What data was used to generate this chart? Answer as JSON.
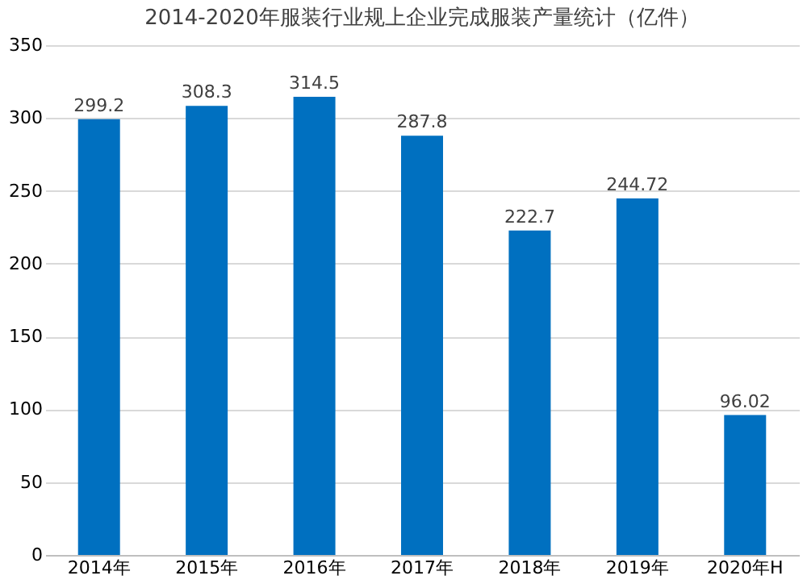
{
  "chart_data": {
    "type": "bar",
    "title": "2014-2020年服装行业规上企业完成服装产量统计（亿件）",
    "categories": [
      "2014年",
      "2015年",
      "2016年",
      "2017年",
      "2018年",
      "2019年",
      "2020年H"
    ],
    "values": [
      299.2,
      308.3,
      314.5,
      287.8,
      222.7,
      244.72,
      96.02
    ],
    "color": "#0070c0",
    "ylim": [
      0,
      350
    ],
    "yticks": [
      0,
      50,
      100,
      150,
      200,
      250,
      300,
      350
    ],
    "grid": "y",
    "data_labels": true
  }
}
